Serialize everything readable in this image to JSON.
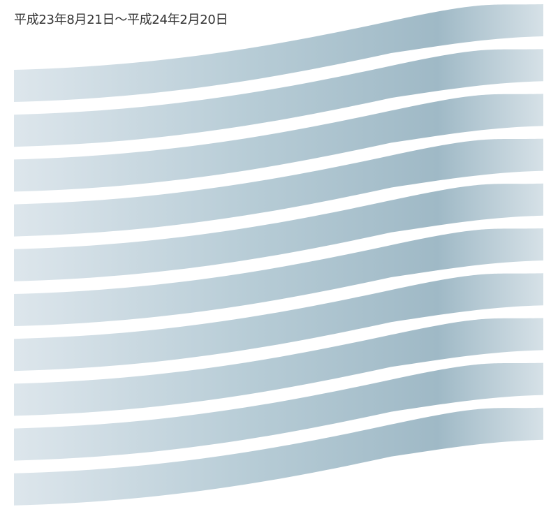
{
  "header": {
    "period": "平成23年8月21日～平成24年2月20日"
  },
  "ribbons": {
    "count": 10,
    "colors": {
      "light": "#dde6ec",
      "mid": "#b7ccd6",
      "dark": "#9fb9c6",
      "end": "#d6e1e7"
    }
  }
}
